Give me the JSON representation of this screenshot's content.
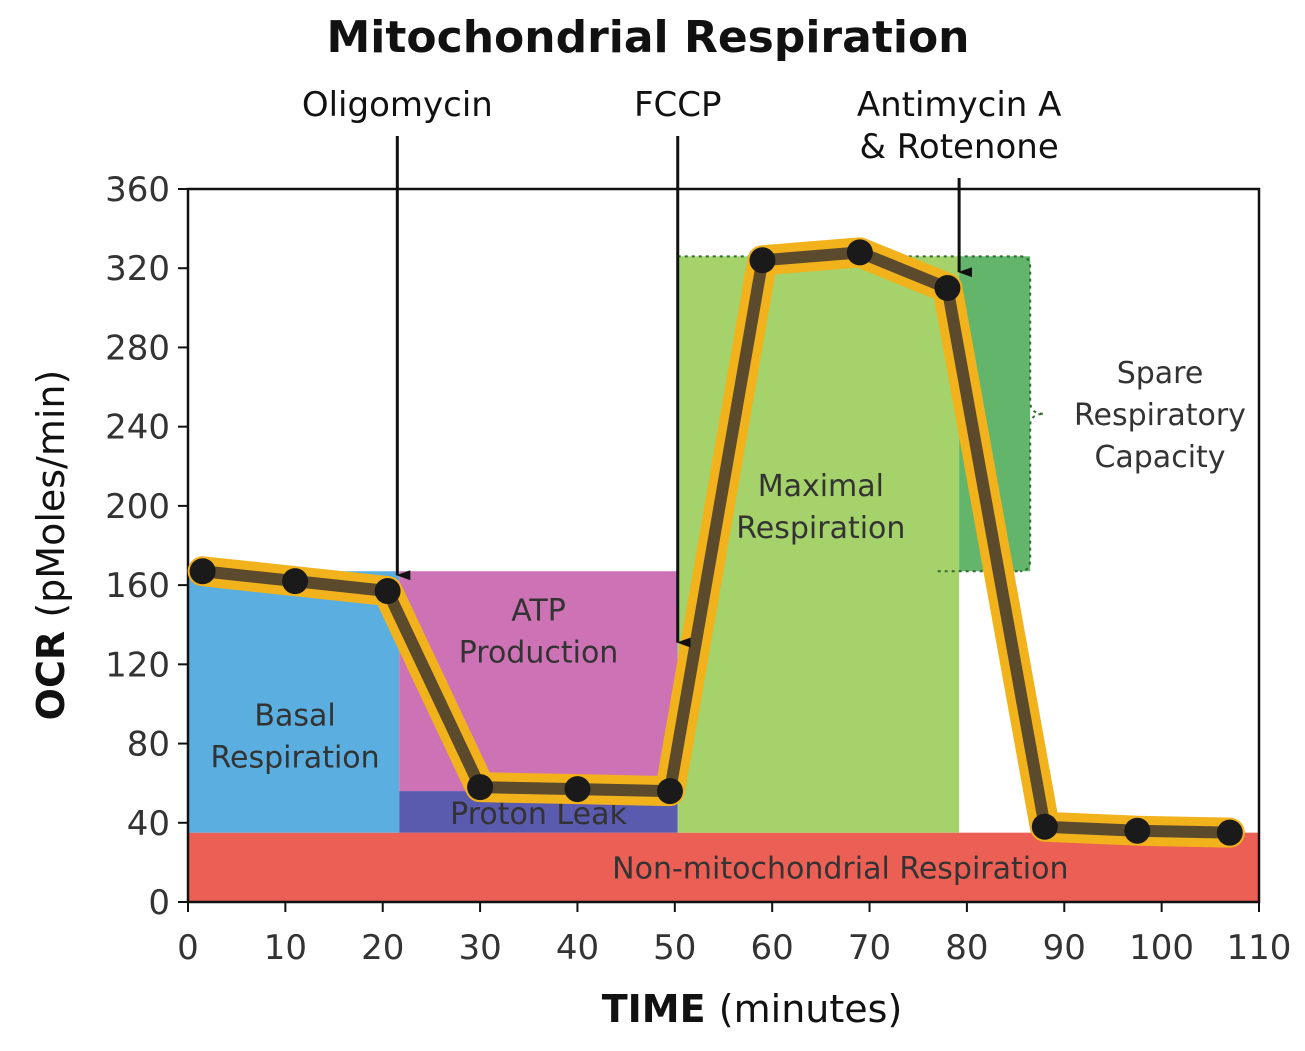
{
  "chart_data": {
    "type": "line",
    "title": "Mitochondrial Respiration",
    "xlabel_bold": "TIME",
    "xlabel_unit": "(minutes)",
    "ylabel_bold": "OCR",
    "ylabel_unit": "(pMoles/min)",
    "xlim": [
      0,
      110
    ],
    "ylim": [
      0,
      360
    ],
    "x_ticks": [
      0,
      10,
      20,
      30,
      40,
      50,
      60,
      70,
      80,
      90,
      100,
      110
    ],
    "y_ticks": [
      0,
      40,
      80,
      120,
      160,
      200,
      240,
      280,
      320,
      360
    ],
    "grid": false,
    "points": {
      "x": [
        1.5,
        11,
        20.5,
        30,
        40,
        49.5,
        59,
        69,
        78,
        88,
        97.5,
        107
      ],
      "y": [
        167,
        162,
        157,
        58,
        57,
        56,
        324,
        328,
        310,
        38,
        36,
        35
      ]
    },
    "line_color": "#5b4a2c",
    "halo_color": "#f2b21c",
    "injections": [
      {
        "lines": [
          "Oligomycin"
        ],
        "x": 21.5,
        "arrow_to_y": 165
      },
      {
        "lines": [
          "FCCP"
        ],
        "x": 50.3,
        "arrow_to_y": 131
      },
      {
        "lines": [
          "Antimycin A",
          "& Rotenone"
        ],
        "x": 79.2,
        "arrow_to_y": 318
      }
    ],
    "regions": [
      {
        "name": "Non-mitochondrial Respiration",
        "lines": [
          "Non-mitochondrial Respiration"
        ],
        "x0": 0,
        "x1": 110,
        "y0": 0,
        "y1": 35,
        "color": "#ec5f55"
      },
      {
        "name": "Basal Respiration",
        "lines": [
          "Basal",
          "Respiration"
        ],
        "x0": 0,
        "x1": 21.7,
        "y0": 35,
        "y1": 167,
        "color": "#5aaee0"
      },
      {
        "name": "ATP Production",
        "lines": [
          "ATP",
          "Production"
        ],
        "x0": 21.7,
        "x1": 50.3,
        "y0": 56,
        "y1": 167,
        "color": "#cd72b5"
      },
      {
        "name": "Proton Leak",
        "lines": [
          "Proton Leak"
        ],
        "x0": 21.7,
        "x1": 50.3,
        "y0": 35,
        "y1": 56,
        "color": "#5a5aae"
      },
      {
        "name": "Maximal Respiration",
        "lines": [
          "Maximal",
          "Respiration"
        ],
        "x0": 50.3,
        "x1": 79.2,
        "y0": 35,
        "y1": 326,
        "color": "#a5d26a"
      },
      {
        "name": "Spare Respiratory Capacity region",
        "lines": [],
        "x0": 79.2,
        "x1": 86.5,
        "y0": 167,
        "y1": 326,
        "color": "#62b56b"
      }
    ],
    "annotation": {
      "lines": [
        "Spare",
        "Respiratory",
        "Capacity"
      ]
    }
  }
}
